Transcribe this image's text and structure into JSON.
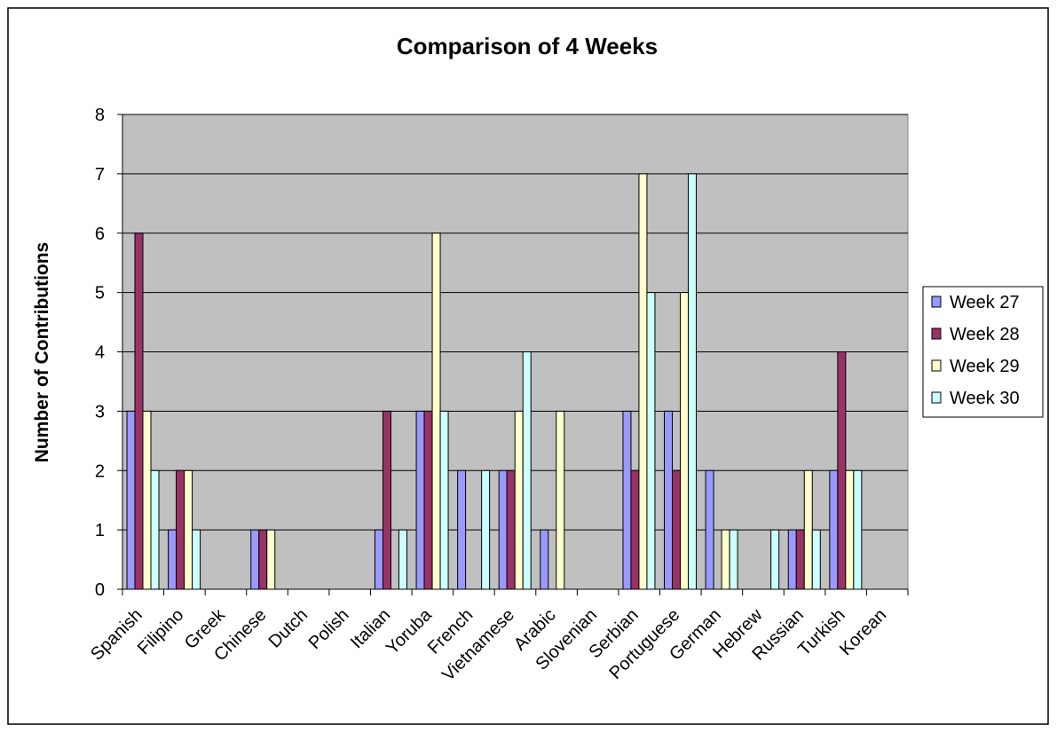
{
  "chart_data": {
    "type": "bar",
    "title": "Comparison of 4 Weeks",
    "xlabel": "",
    "ylabel": "Number of Contributions",
    "ylim": [
      0,
      8
    ],
    "yticks": [
      "0",
      "1",
      "2",
      "3",
      "4",
      "5",
      "6",
      "7",
      "8"
    ],
    "grid": true,
    "legend_position": "right",
    "categories": [
      "Spanish",
      "Filipino",
      "Greek",
      "Chinese",
      "Dutch",
      "Polish",
      "Italian",
      "Yoruba",
      "French",
      "Vietnamese",
      "Arabic",
      "Slovenian",
      "Serbian",
      "Portuguese",
      "German",
      "Hebrew",
      "Russian",
      "Turkish",
      "Korean"
    ],
    "series": [
      {
        "name": "Week 27",
        "color": "#9999ff",
        "values": [
          3,
          1,
          0,
          1,
          0,
          0,
          1,
          3,
          2,
          2,
          1,
          0,
          3,
          3,
          2,
          0,
          1,
          2,
          0
        ]
      },
      {
        "name": "Week 28",
        "color": "#993366",
        "values": [
          6,
          2,
          0,
          1,
          0,
          0,
          3,
          3,
          0,
          2,
          0,
          0,
          2,
          2,
          0,
          0,
          1,
          4,
          0
        ]
      },
      {
        "name": "Week 29",
        "color": "#ffffcc",
        "values": [
          3,
          2,
          0,
          1,
          0,
          0,
          0,
          6,
          0,
          3,
          3,
          0,
          7,
          5,
          1,
          0,
          2,
          2,
          0
        ]
      },
      {
        "name": "Week 30",
        "color": "#ccffff",
        "values": [
          2,
          1,
          0,
          0,
          0,
          0,
          1,
          3,
          2,
          4,
          0,
          0,
          5,
          7,
          1,
          1,
          1,
          2,
          0
        ]
      }
    ]
  }
}
